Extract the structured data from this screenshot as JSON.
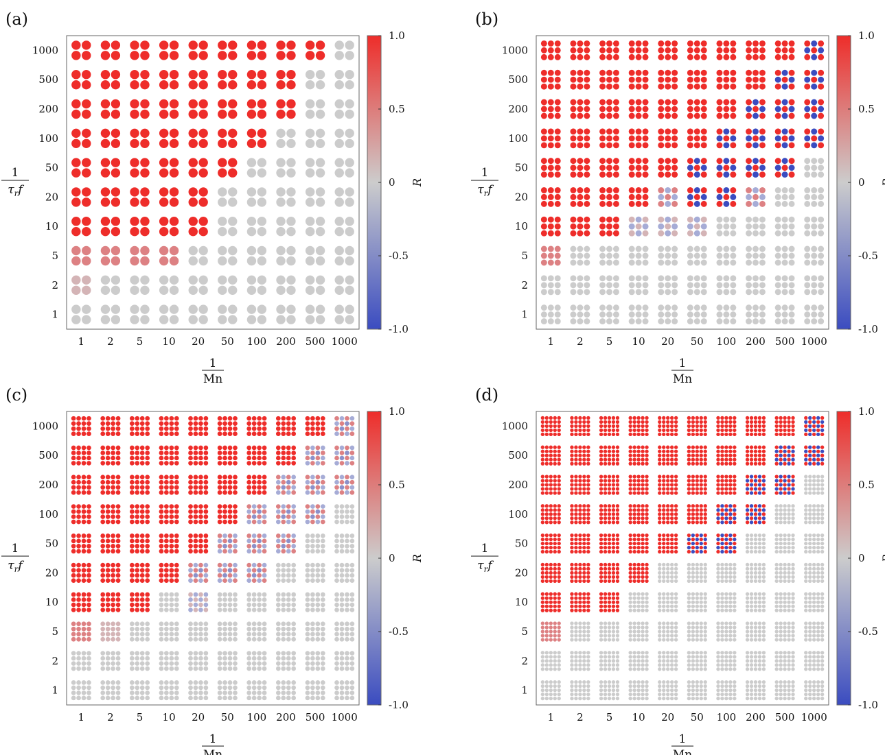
{
  "figure": {
    "colormap": {
      "low": "#3b4cc0",
      "mid": "#cccccc",
      "high": "#ee2d2a"
    }
  },
  "chart_data": [
    {
      "panel": "(a)",
      "type": "heatmap",
      "marker_grid": 2,
      "x_categories": [
        "1",
        "2",
        "5",
        "10",
        "20",
        "50",
        "100",
        "200",
        "500",
        "1000"
      ],
      "y_categories": [
        "1",
        "2",
        "5",
        "10",
        "20",
        "50",
        "100",
        "200",
        "500",
        "1000"
      ],
      "xlabel_num": "1",
      "xlabel_den": "Mn",
      "ylabel_num": "1",
      "ylabel_den": "τ",
      "ylabel_den_sub": "r",
      "ylabel_den_tail": "f",
      "colorbar": {
        "label": "R",
        "ticks": [
          "1.0",
          "0.5",
          "0",
          "-0.5",
          "-1.0"
        ],
        "range": [
          -1,
          1
        ]
      },
      "rows": [
        {
          "y": "1000",
          "cells": [
            "R",
            "R",
            "R",
            "R",
            "R",
            "R",
            "R",
            "R",
            "R",
            "G"
          ]
        },
        {
          "y": "500",
          "cells": [
            "R",
            "R",
            "R",
            "R",
            "R",
            "R",
            "R",
            "R",
            "G",
            "G"
          ]
        },
        {
          "y": "200",
          "cells": [
            "R",
            "R",
            "R",
            "R",
            "R",
            "R",
            "R",
            "R",
            "G",
            "G"
          ]
        },
        {
          "y": "100",
          "cells": [
            "R",
            "R",
            "R",
            "R",
            "R",
            "R",
            "R",
            "G",
            "G",
            "G"
          ]
        },
        {
          "y": "50",
          "cells": [
            "R",
            "R",
            "R",
            "R",
            "R",
            "R",
            "G",
            "G",
            "G",
            "G"
          ]
        },
        {
          "y": "20",
          "cells": [
            "R",
            "R",
            "R",
            "R",
            "R",
            "G",
            "G",
            "G",
            "G",
            "G"
          ]
        },
        {
          "y": "10",
          "cells": [
            "R",
            "R",
            "R",
            "R",
            "R",
            "G",
            "G",
            "G",
            "G",
            "G"
          ]
        },
        {
          "y": "5",
          "cells": [
            "P",
            "P",
            "P",
            "P",
            "G",
            "G",
            "G",
            "G",
            "G",
            "G"
          ]
        },
        {
          "y": "2",
          "cells": [
            "LP",
            "G",
            "G",
            "G",
            "G",
            "G",
            "G",
            "G",
            "G",
            "G"
          ]
        },
        {
          "y": "1",
          "cells": [
            "G",
            "G",
            "G",
            "G",
            "G",
            "G",
            "G",
            "G",
            "G",
            "G"
          ]
        }
      ]
    },
    {
      "panel": "(b)",
      "type": "heatmap",
      "marker_grid": 3,
      "x_categories": [
        "1",
        "2",
        "5",
        "10",
        "20",
        "50",
        "100",
        "200",
        "500",
        "1000"
      ],
      "y_categories": [
        "1",
        "2",
        "5",
        "10",
        "20",
        "50",
        "100",
        "200",
        "500",
        "1000"
      ],
      "xlabel_num": "1",
      "xlabel_den": "Mn",
      "ylabel_num": "1",
      "ylabel_den": "τ",
      "ylabel_den_sub": "r",
      "ylabel_den_tail": "f",
      "colorbar": {
        "label": "R",
        "ticks": [
          "1.0",
          "0.5",
          "0",
          "-0.5",
          "-1.0"
        ],
        "range": [
          -1,
          1
        ]
      },
      "rows": [
        {
          "y": "1000",
          "cells": [
            "R",
            "R",
            "R",
            "R",
            "R",
            "R",
            "R",
            "R",
            "R",
            "M"
          ]
        },
        {
          "y": "500",
          "cells": [
            "R",
            "R",
            "R",
            "R",
            "R",
            "R",
            "R",
            "R",
            "M",
            "M"
          ]
        },
        {
          "y": "200",
          "cells": [
            "R",
            "R",
            "R",
            "R",
            "R",
            "R",
            "R",
            "M",
            "M",
            "M"
          ]
        },
        {
          "y": "100",
          "cells": [
            "R",
            "R",
            "R",
            "R",
            "R",
            "R",
            "M",
            "M",
            "M",
            "M"
          ]
        },
        {
          "y": "50",
          "cells": [
            "R",
            "R",
            "R",
            "R",
            "R",
            "M",
            "M",
            "M",
            "M",
            "G"
          ]
        },
        {
          "y": "20",
          "cells": [
            "R",
            "R",
            "R",
            "R",
            "MP",
            "M",
            "M",
            "MP",
            "G",
            "G"
          ]
        },
        {
          "y": "10",
          "cells": [
            "R",
            "R",
            "R",
            "ML",
            "ML",
            "ML",
            "G",
            "G",
            "G",
            "G"
          ]
        },
        {
          "y": "5",
          "cells": [
            "P",
            "G",
            "G",
            "G",
            "G",
            "G",
            "G",
            "G",
            "G",
            "G"
          ]
        },
        {
          "y": "2",
          "cells": [
            "G",
            "G",
            "G",
            "G",
            "G",
            "G",
            "G",
            "G",
            "G",
            "G"
          ]
        },
        {
          "y": "1",
          "cells": [
            "G",
            "G",
            "G",
            "G",
            "G",
            "G",
            "G",
            "G",
            "G",
            "G"
          ]
        }
      ]
    },
    {
      "panel": "(c)",
      "type": "heatmap",
      "marker_grid": 4,
      "x_categories": [
        "1",
        "2",
        "5",
        "10",
        "20",
        "50",
        "100",
        "200",
        "500",
        "1000"
      ],
      "y_categories": [
        "1",
        "2",
        "5",
        "10",
        "20",
        "50",
        "100",
        "200",
        "500",
        "1000"
      ],
      "xlabel_num": "1",
      "xlabel_den": "Mn",
      "ylabel_num": "1",
      "ylabel_den": "τ",
      "ylabel_den_sub": "r",
      "ylabel_den_tail": "f",
      "colorbar": {
        "label": "R",
        "ticks": [
          "1.0",
          "0.5",
          "0",
          "-0.5",
          "-1.0"
        ],
        "range": [
          -1,
          1
        ]
      },
      "rows": [
        {
          "y": "1000",
          "cells": [
            "R",
            "R",
            "R",
            "R",
            "R",
            "R",
            "R",
            "R",
            "R",
            "MP"
          ]
        },
        {
          "y": "500",
          "cells": [
            "R",
            "R",
            "R",
            "R",
            "R",
            "R",
            "R",
            "R",
            "MP",
            "MP"
          ]
        },
        {
          "y": "200",
          "cells": [
            "R",
            "R",
            "R",
            "R",
            "R",
            "R",
            "R",
            "MP",
            "MP",
            "MP"
          ]
        },
        {
          "y": "100",
          "cells": [
            "R",
            "R",
            "R",
            "R",
            "R",
            "R",
            "MP",
            "MP",
            "MP",
            "G"
          ]
        },
        {
          "y": "50",
          "cells": [
            "R",
            "R",
            "R",
            "R",
            "R",
            "MP",
            "MP",
            "MP",
            "G",
            "G"
          ]
        },
        {
          "y": "20",
          "cells": [
            "R",
            "R",
            "R",
            "R",
            "MP",
            "MP",
            "MP",
            "G",
            "G",
            "G"
          ]
        },
        {
          "y": "10",
          "cells": [
            "R",
            "R",
            "R",
            "G",
            "ML",
            "G",
            "G",
            "G",
            "G",
            "G"
          ]
        },
        {
          "y": "5",
          "cells": [
            "P",
            "LP",
            "G",
            "G",
            "G",
            "G",
            "G",
            "G",
            "G",
            "G"
          ]
        },
        {
          "y": "2",
          "cells": [
            "G",
            "G",
            "G",
            "G",
            "G",
            "G",
            "G",
            "G",
            "G",
            "G"
          ]
        },
        {
          "y": "1",
          "cells": [
            "G",
            "G",
            "G",
            "G",
            "G",
            "G",
            "G",
            "G",
            "G",
            "G"
          ]
        }
      ]
    },
    {
      "panel": "(d)",
      "type": "heatmap",
      "marker_grid": 5,
      "x_categories": [
        "1",
        "2",
        "5",
        "10",
        "20",
        "50",
        "100",
        "200",
        "500",
        "1000"
      ],
      "y_categories": [
        "1",
        "2",
        "5",
        "10",
        "20",
        "50",
        "100",
        "200",
        "500",
        "1000"
      ],
      "xlabel_num": "1",
      "xlabel_den": "Mn",
      "ylabel_num": "1",
      "ylabel_den": "τ",
      "ylabel_den_sub": "r",
      "ylabel_den_tail": "f",
      "colorbar": {
        "label": "R",
        "ticks": [
          "1.0",
          "0.5",
          "0",
          "-0.5",
          "-1.0"
        ],
        "range": [
          -1,
          1
        ]
      },
      "rows": [
        {
          "y": "1000",
          "cells": [
            "R",
            "R",
            "R",
            "R",
            "R",
            "R",
            "R",
            "R",
            "R",
            "M"
          ]
        },
        {
          "y": "500",
          "cells": [
            "R",
            "R",
            "R",
            "R",
            "R",
            "R",
            "R",
            "R",
            "M",
            "M"
          ]
        },
        {
          "y": "200",
          "cells": [
            "R",
            "R",
            "R",
            "R",
            "R",
            "R",
            "R",
            "M",
            "M",
            "G"
          ]
        },
        {
          "y": "100",
          "cells": [
            "R",
            "R",
            "R",
            "R",
            "R",
            "R",
            "M",
            "M",
            "G",
            "G"
          ]
        },
        {
          "y": "50",
          "cells": [
            "R",
            "R",
            "R",
            "R",
            "R",
            "M",
            "M",
            "G",
            "G",
            "G"
          ]
        },
        {
          "y": "20",
          "cells": [
            "R",
            "R",
            "R",
            "R",
            "G",
            "G",
            "G",
            "G",
            "G",
            "G"
          ]
        },
        {
          "y": "10",
          "cells": [
            "R",
            "R",
            "R",
            "G",
            "G",
            "G",
            "G",
            "G",
            "G",
            "G"
          ]
        },
        {
          "y": "5",
          "cells": [
            "P",
            "G",
            "G",
            "G",
            "G",
            "G",
            "G",
            "G",
            "G",
            "G"
          ]
        },
        {
          "y": "2",
          "cells": [
            "G",
            "G",
            "G",
            "G",
            "G",
            "G",
            "G",
            "G",
            "G",
            "G"
          ]
        },
        {
          "y": "1",
          "cells": [
            "G",
            "G",
            "G",
            "G",
            "G",
            "G",
            "G",
            "G",
            "G",
            "G"
          ]
        }
      ]
    }
  ]
}
